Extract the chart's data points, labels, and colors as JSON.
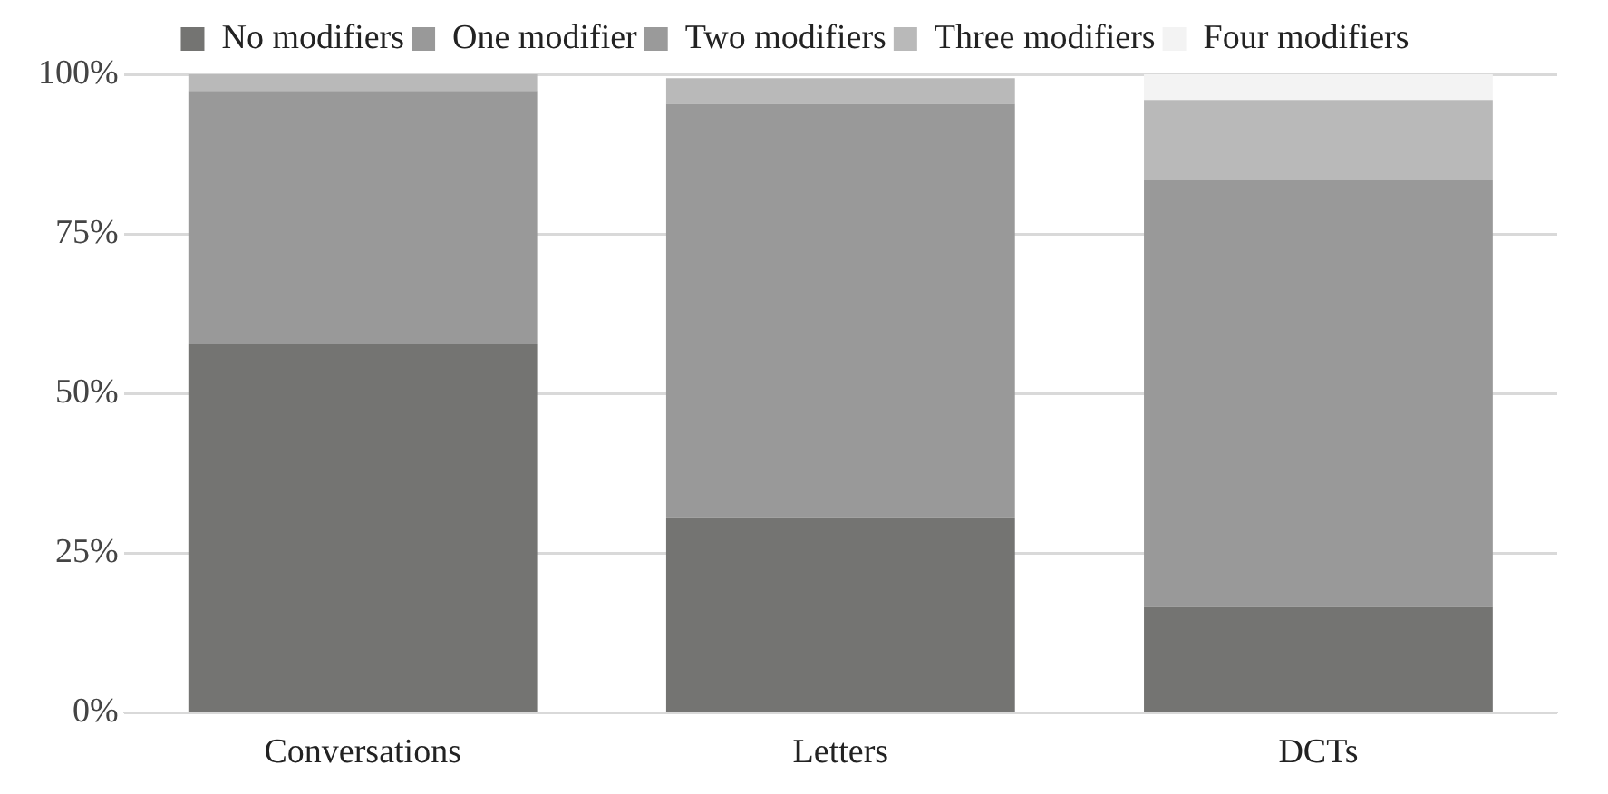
{
  "chart_data": {
    "type": "bar",
    "stacked": true,
    "categories": [
      "Conversations",
      "Letters",
      "DCTs"
    ],
    "series": [
      {
        "name": "No modifiers",
        "color": "#747472",
        "values": [
          57.7,
          30.6,
          16.6
        ]
      },
      {
        "name": "One modifier",
        "color": "#999999",
        "values": [
          39.7,
          64.8,
          66.8
        ]
      },
      {
        "name": "Two modifiers",
        "color": "#9a9a9a",
        "values": [
          0,
          0,
          0
        ]
      },
      {
        "name": "Three modifiers",
        "color": "#b9b9b9",
        "values": [
          2.6,
          4,
          12.6
        ]
      },
      {
        "name": "Four modifiers",
        "color": "#f3f3f3",
        "values": [
          0,
          0,
          4
        ]
      }
    ],
    "ylim": [
      0,
      100
    ],
    "yticks": [
      {
        "value": 0,
        "label": "0%"
      },
      {
        "value": 25,
        "label": "25%"
      },
      {
        "value": 50,
        "label": "50%"
      },
      {
        "value": 75,
        "label": "75%"
      },
      {
        "value": 100,
        "label": "100%"
      }
    ],
    "grid": "y",
    "legend": "top"
  }
}
